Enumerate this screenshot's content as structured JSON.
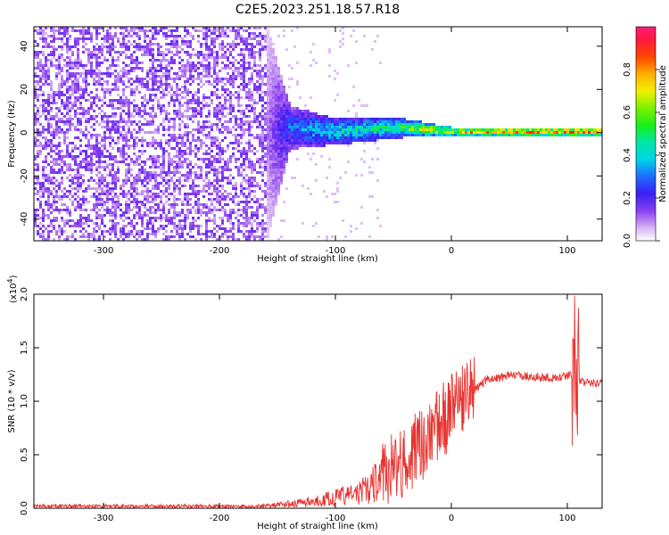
{
  "title": "C2E5.2023.251.18.57.R18",
  "chart_data": [
    {
      "type": "heatmap",
      "xlabel": "Height of straight line (km)",
      "ylabel": "Frequency (Hz)",
      "xlim": [
        -360,
        130
      ],
      "ylim": [
        -50,
        49
      ],
      "xticks": [
        -300,
        -200,
        -100,
        0,
        100
      ],
      "yticks": [
        -40,
        -20,
        0,
        20,
        40
      ],
      "colorbar": {
        "label": "Normalized spectral amplitude",
        "range": [
          0,
          1
        ],
        "ticks": [
          "0.0",
          "0.2",
          "0.4",
          "0.6",
          "0.8"
        ],
        "colormap": "rainbow (white→purple→blue→cyan→green→yellow→orange→red→pink)"
      },
      "description_points": [
        {
          "x": -360,
          "y_center": 0,
          "y_spread": 50,
          "amplitude": 0.1
        },
        {
          "x": -160,
          "y_center": 0,
          "y_spread": 50,
          "amplitude": 0.1
        },
        {
          "x": -140,
          "y_center": 3,
          "y_spread": 10,
          "amplitude": 0.3
        },
        {
          "x": -100,
          "y_center": 1,
          "y_spread": 6,
          "amplitude": 0.45
        },
        {
          "x": -50,
          "y_center": 3,
          "y_spread": 5,
          "amplitude": 0.5
        },
        {
          "x": -20,
          "y_center": 2,
          "y_spread": 3,
          "amplitude": 0.7
        },
        {
          "x": 0,
          "y_center": 1,
          "y_spread": 2,
          "amplitude": 0.75
        },
        {
          "x": 50,
          "y_center": 1,
          "y_spread": 2,
          "amplitude": 0.9
        },
        {
          "x": 130,
          "y_center": 1,
          "y_spread": 2,
          "amplitude": 0.9
        }
      ]
    },
    {
      "type": "line",
      "xlabel": "Height of straight line (km)",
      "ylabel": "SNR (10 * v/v)",
      "yscale_label": "(x10",
      "yscale_exp": "4",
      "yscale_close": ")",
      "xlim": [
        -360,
        130
      ],
      "ylim": [
        0,
        2.0
      ],
      "xticks": [
        -300,
        -200,
        -100,
        0,
        100
      ],
      "yticks": [
        "0.0",
        "0.5",
        "1.0",
        "1.5",
        "2.0"
      ],
      "series": [
        {
          "color": "#e8332f",
          "x": [
            -360,
            -300,
            -250,
            -200,
            -170,
            -150,
            -130,
            -110,
            -100,
            -90,
            -80,
            -70,
            -60,
            -50,
            -40,
            -30,
            -25,
            -20,
            -15,
            -10,
            -5,
            0,
            5,
            10,
            15,
            20,
            25,
            30,
            40,
            50,
            60,
            70,
            80,
            90,
            100,
            105,
            108,
            110,
            115,
            120,
            130
          ],
          "y": [
            0.02,
            0.02,
            0.02,
            0.02,
            0.02,
            0.03,
            0.05,
            0.08,
            0.1,
            0.12,
            0.14,
            0.2,
            0.3,
            0.38,
            0.45,
            0.55,
            0.6,
            0.7,
            0.75,
            0.8,
            0.85,
            0.9,
            0.95,
            1.0,
            1.05,
            1.1,
            1.15,
            1.2,
            1.22,
            1.24,
            1.24,
            1.23,
            1.22,
            1.22,
            1.24,
            1.25,
            1.23,
            1.2,
            1.18,
            1.17,
            1.16
          ]
        }
      ]
    }
  ]
}
